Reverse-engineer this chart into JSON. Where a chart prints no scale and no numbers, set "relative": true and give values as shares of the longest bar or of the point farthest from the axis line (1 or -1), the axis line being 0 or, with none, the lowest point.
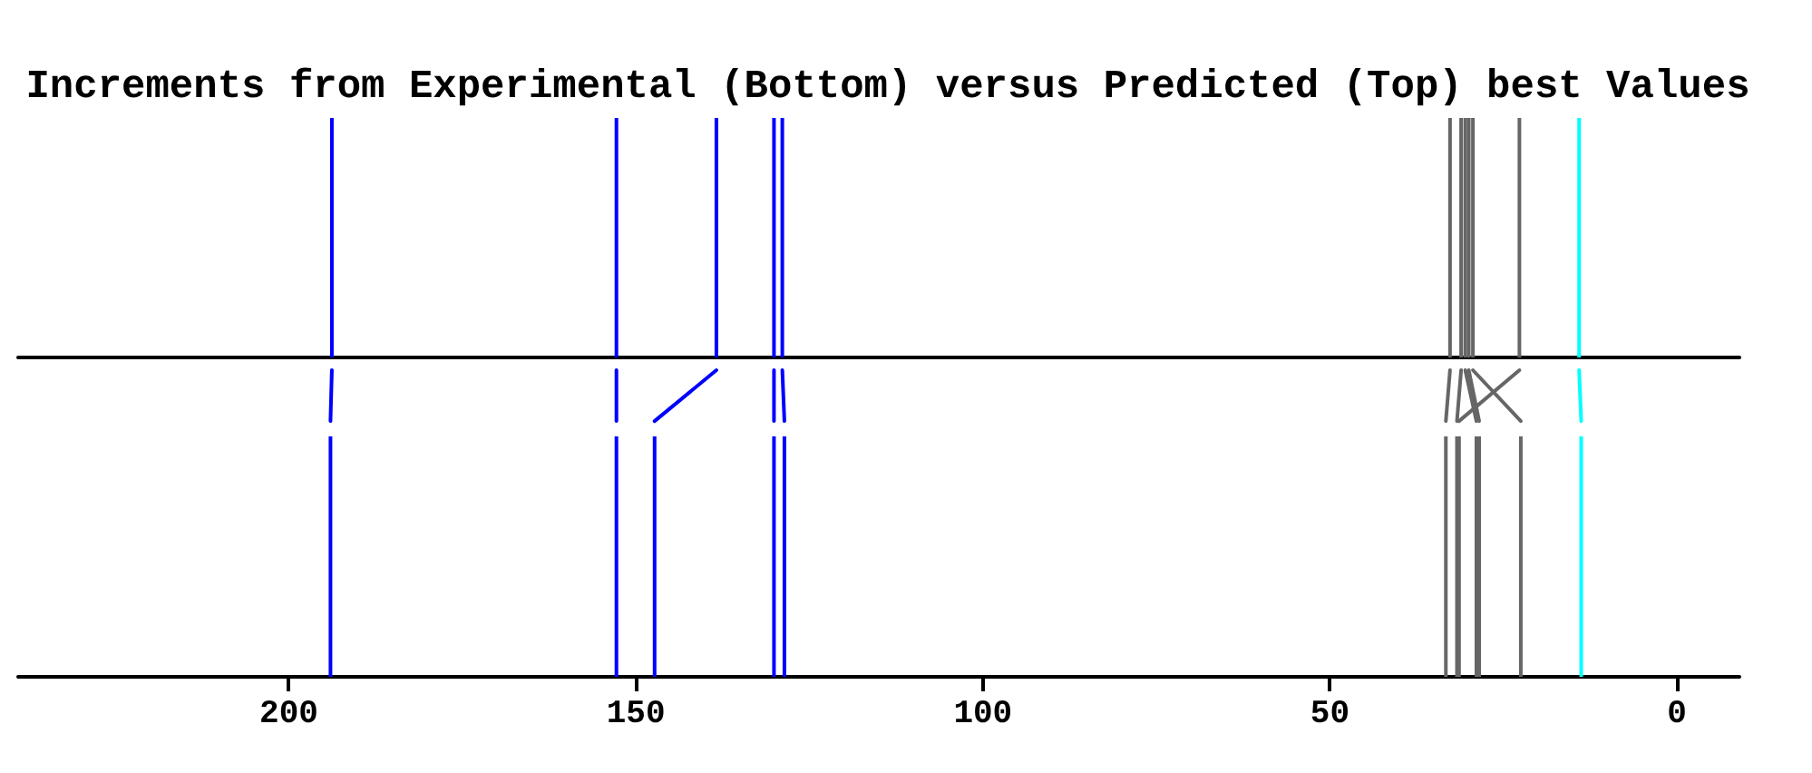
{
  "chart_data": [
    {
      "type": "bar",
      "title": "Increments from Experimental (Bottom) versus Predicted (Top) best Values",
      "relative": true,
      "xlim": [
        239,
        -9
      ],
      "x": [
        193.8,
        152.8,
        138.4,
        130.1,
        128.9,
        32.7,
        31.1,
        30.5,
        30.0,
        29.4,
        22.7,
        14.1
      ],
      "values": [
        1,
        1,
        1,
        1,
        1,
        1,
        1,
        1,
        1,
        1,
        1,
        1
      ],
      "colors": [
        "#0000ff",
        "#0000ff",
        "#0000ff",
        "#0000ff",
        "#0000ff",
        "#666666",
        "#666666",
        "#666666",
        "#666666",
        "#666666",
        "#666666",
        "#00ffff"
      ]
    },
    {
      "type": "bar",
      "relative": true,
      "xlim": [
        239,
        -9
      ],
      "xticks": [
        200,
        150,
        100,
        50,
        0
      ],
      "series": [
        {
          "x": [
            194.0,
            152.8,
            147.3,
            130.1,
            128.6,
            33.3,
            31.7,
            31.4,
            28.9,
            28.5,
            22.5,
            13.8
          ],
          "values": [
            0.784,
            0.784,
            0.784,
            0.784,
            0.784,
            0.784,
            0.784,
            0.784,
            0.784,
            0.784,
            0.784,
            0.784
          ],
          "colors": [
            "#0000ff",
            "#0000ff",
            "#0000ff",
            "#0000ff",
            "#0000ff",
            "#666666",
            "#666666",
            "#666666",
            "#666666",
            "#666666",
            "#666666",
            "#00ffff"
          ]
        },
        {
          "type": "line",
          "color": "#0000ff",
          "x": [
            194.0,
            193.8
          ],
          "values": [
            0.834,
            1
          ]
        },
        {
          "type": "line",
          "color": "#0000ff",
          "x": [
            152.8,
            152.8
          ],
          "values": [
            0.834,
            1
          ]
        },
        {
          "type": "line",
          "color": "#0000ff",
          "x": [
            147.3,
            138.4
          ],
          "values": [
            0.834,
            1
          ]
        },
        {
          "type": "line",
          "color": "#0000ff",
          "x": [
            130.1,
            130.1
          ],
          "values": [
            0.834,
            1
          ]
        },
        {
          "type": "line",
          "color": "#0000ff",
          "x": [
            128.6,
            128.9
          ],
          "values": [
            0.834,
            1
          ]
        },
        {
          "type": "line",
          "color": "#666666",
          "x": [
            33.3,
            32.7
          ],
          "values": [
            0.834,
            1
          ]
        },
        {
          "type": "line",
          "color": "#666666",
          "x": [
            31.7,
            31.1
          ],
          "values": [
            0.834,
            1
          ]
        },
        {
          "type": "line",
          "color": "#666666",
          "x": [
            28.9,
            30.5
          ],
          "values": [
            0.834,
            1
          ]
        },
        {
          "type": "line",
          "color": "#666666",
          "x": [
            28.5,
            30.0
          ],
          "values": [
            0.834,
            1
          ]
        },
        {
          "type": "line",
          "color": "#666666",
          "x": [
            22.5,
            29.4
          ],
          "values": [
            0.834,
            1
          ]
        },
        {
          "type": "line",
          "color": "#666666",
          "x": [
            31.4,
            22.7
          ],
          "values": [
            0.834,
            1
          ]
        },
        {
          "type": "line",
          "color": "#00ffff",
          "x": [
            13.8,
            14.1
          ],
          "values": [
            0.834,
            1
          ]
        }
      ]
    }
  ]
}
